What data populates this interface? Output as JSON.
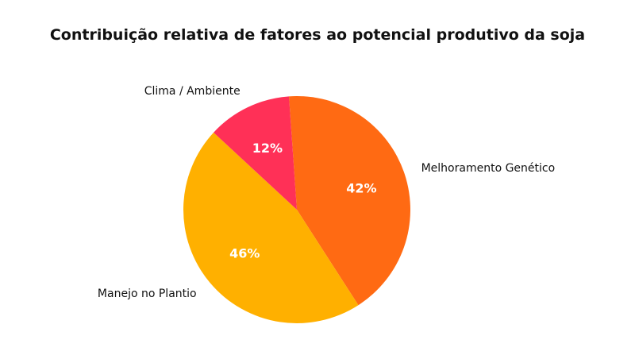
{
  "chart_data": {
    "type": "pie",
    "title": "Contribuição relativa de fatores ao potencial produtivo da soja",
    "slices": [
      {
        "label": "Melhoramento Genético",
        "value": 42,
        "display": "42%",
        "color": "#FF6A13"
      },
      {
        "label": "Manejo no Plantio",
        "value": 46,
        "display": "46%",
        "color": "#FFB000"
      },
      {
        "label": "Clima / Ambiente",
        "value": 12,
        "display": "12%",
        "color": "#FF3057"
      }
    ],
    "start_angle_deg": -4.0,
    "direction": "clockwise",
    "legend": "none",
    "labels": "outside"
  }
}
